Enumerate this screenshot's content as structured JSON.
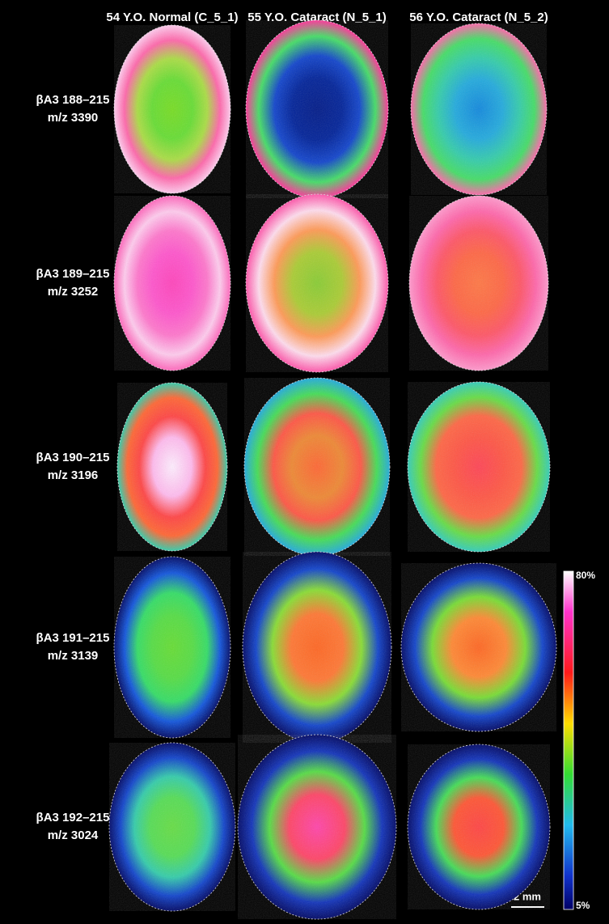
{
  "columns": [
    "54 Y.O. Normal (C_5_1)",
    "55 Y.O. Cataract (N_5_1)",
    "56 Y.O. Cataract (N_5_2)"
  ],
  "rows": [
    {
      "label": "βA3 188–215",
      "mz": "m/z 3390"
    },
    {
      "label": "βA3 189–215",
      "mz": "m/z 3252"
    },
    {
      "label": "βA3 190–215",
      "mz": "m/z 3196"
    },
    {
      "label": "βA3 191–215",
      "mz": "m/z 3139"
    },
    {
      "label": "βA3 192–215",
      "mz": "m/z 3024"
    }
  ],
  "colorbar": {
    "max_label": "80%",
    "min_label": "5%"
  },
  "scale_bar": "2 mm"
}
